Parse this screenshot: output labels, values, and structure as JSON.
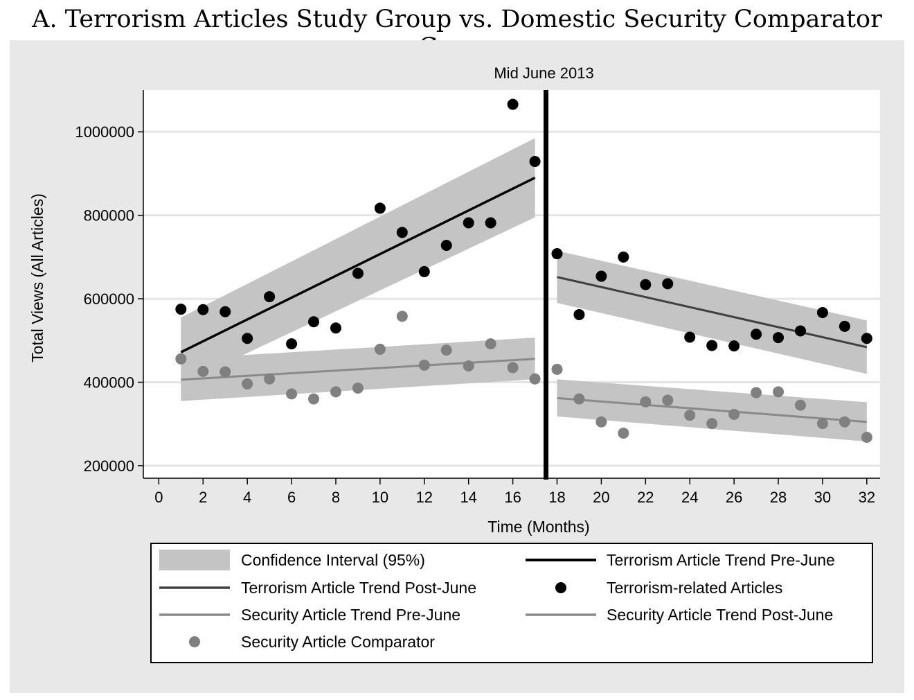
{
  "chart_data": {
    "type": "scatter",
    "title": "A. Terrorism Articles Study Group vs. Domestic Security Comparator Group",
    "xlabel": "Time (Months)",
    "ylabel": "Total Views (All Articles)",
    "xlim": [
      -0.7,
      32.6
    ],
    "ylim": [
      170000,
      1100000
    ],
    "xticks": [
      0,
      2,
      4,
      6,
      8,
      10,
      12,
      14,
      16,
      18,
      20,
      22,
      24,
      26,
      28,
      30,
      32
    ],
    "yticks": [
      200000,
      400000,
      600000,
      800000,
      1000000
    ],
    "grid": true,
    "vline": {
      "x": 17.5,
      "label": "Mid June 2013"
    },
    "series": [
      {
        "name": "Terrorism-related Articles",
        "kind": "points",
        "color": "#000000",
        "x": [
          1,
          2,
          3,
          4,
          5,
          6,
          7,
          8,
          9,
          10,
          11,
          12,
          13,
          14,
          15,
          16,
          17,
          18,
          19,
          20,
          21,
          22,
          23,
          24,
          25,
          26,
          27,
          28,
          29,
          30,
          31,
          32
        ],
        "y": [
          575000,
          574000,
          569000,
          505000,
          605000,
          492000,
          545000,
          530000,
          661000,
          817000,
          759000,
          665000,
          728000,
          782000,
          782000,
          1066000,
          929000,
          708000,
          562000,
          654000,
          700000,
          634000,
          636000,
          508000,
          488000,
          487000,
          515000,
          507000,
          523000,
          567000,
          534000,
          505000
        ]
      },
      {
        "name": "Security Article Comparator",
        "kind": "points",
        "color": "#808080",
        "x": [
          1,
          2,
          3,
          4,
          5,
          6,
          7,
          8,
          9,
          10,
          11,
          12,
          13,
          14,
          15,
          16,
          17,
          18,
          19,
          20,
          21,
          22,
          23,
          24,
          25,
          26,
          27,
          28,
          29,
          30,
          31,
          32
        ],
        "y": [
          456000,
          426000,
          425000,
          396000,
          408000,
          372000,
          360000,
          377000,
          386000,
          479000,
          558000,
          441000,
          477000,
          439000,
          492000,
          435000,
          408000,
          431000,
          360000,
          305000,
          278000,
          353000,
          357000,
          321000,
          301000,
          323000,
          375000,
          377000,
          345000,
          301000,
          305000,
          268000
        ]
      },
      {
        "name": "Terrorism Article Trend Pre-June",
        "kind": "line",
        "color": "#000000",
        "x": [
          1,
          17
        ],
        "y": [
          472000,
          890000
        ],
        "ci_lower": [
          395000,
          795000
        ],
        "ci_upper": [
          555000,
          985000
        ]
      },
      {
        "name": "Terrorism Article Trend Post-June",
        "kind": "line",
        "color": "#404040",
        "x": [
          18,
          32
        ],
        "y": [
          652000,
          484000
        ],
        "ci_lower": [
          590000,
          420000
        ],
        "ci_upper": [
          715000,
          548000
        ]
      },
      {
        "name": "Security Article Trend Pre-June",
        "kind": "line",
        "color": "#8a8a8a",
        "x": [
          1,
          17
        ],
        "y": [
          406000,
          456000
        ],
        "ci_lower": [
          355000,
          407000
        ],
        "ci_upper": [
          456000,
          507000
        ]
      },
      {
        "name": "Security Article Trend Post-June",
        "kind": "line",
        "color": "#8a8a8a",
        "x": [
          18,
          32
        ],
        "y": [
          362000,
          305000
        ],
        "ci_lower": [
          318000,
          258000
        ],
        "ci_upper": [
          407000,
          352000
        ]
      }
    ],
    "legend": {
      "placement": "bottom",
      "entries": [
        {
          "label": "Confidence Interval (95%)",
          "symbol": "band",
          "color": "#c4c4c4"
        },
        {
          "label": "Terrorism Article Trend Pre-June",
          "symbol": "line",
          "color": "#000000"
        },
        {
          "label": "Terrorism Article Trend Post-June",
          "symbol": "line",
          "color": "#404040"
        },
        {
          "label": "Terrorism-related Articles",
          "symbol": "dot",
          "color": "#000000"
        },
        {
          "label": "Security Article Trend Pre-June",
          "symbol": "line",
          "color": "#8a8a8a"
        },
        {
          "label": "Security Article Trend Post-June",
          "symbol": "line",
          "color": "#8a8a8a"
        },
        {
          "label": "Security Article Comparator",
          "symbol": "dot",
          "color": "#808080"
        }
      ]
    }
  }
}
